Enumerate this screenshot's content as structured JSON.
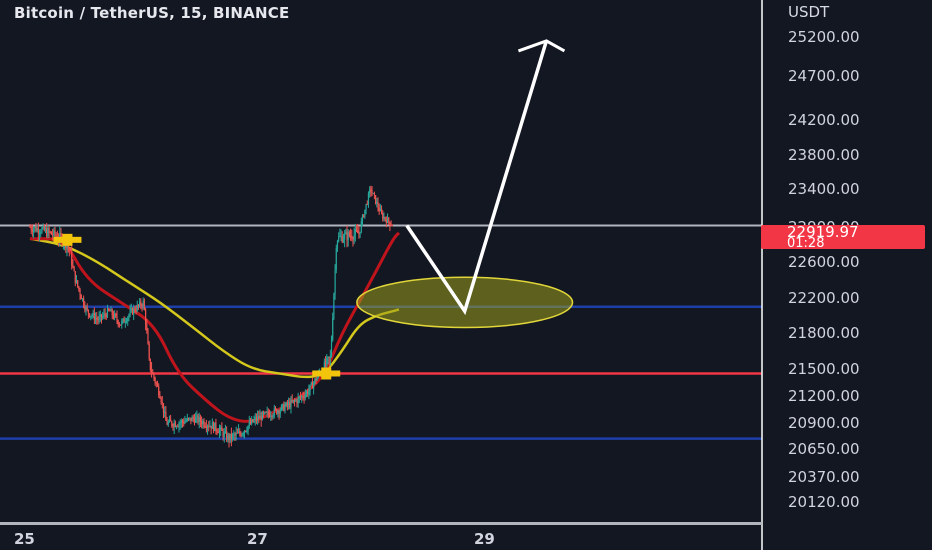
{
  "header": {
    "title": "Bitcoin / TetherUS, 15, BINANCE"
  },
  "axis": {
    "unit": "USDT"
  },
  "price_tag": {
    "value": "22919.97",
    "countdown": "01:28"
  },
  "colors": {
    "background": "#131722",
    "price_line": "#b2b5be",
    "support_blue": "#1e3fa8",
    "support_red": "#f23645",
    "ema_fast": "#c0141c",
    "ema_slow": "#d4c81c",
    "candle_up": "#26a69a",
    "candle_down": "#ef5350",
    "zone": "#9c9c1c",
    "arrow": "#ffffff"
  },
  "chart_data": {
    "type": "candlestick",
    "title": "Bitcoin / TetherUS, 15, BINANCE",
    "y_axis_ticks": [
      "25200.00",
      "24700.00",
      "24200.00",
      "23800.00",
      "23400.00",
      "22900.00",
      "22600.00",
      "22200.00",
      "21800.00",
      "21500.00",
      "21200.00",
      "20900.00",
      "20650.00",
      "20370.00",
      "20120.00"
    ],
    "x_axis_ticks": [
      "25",
      "27",
      "29"
    ],
    "last_price": 22919.97,
    "horizontal_levels": [
      {
        "price": 22920,
        "color": "gray"
      },
      {
        "price": 22100,
        "color": "blue"
      },
      {
        "price": 21450,
        "color": "red"
      },
      {
        "price": 20750,
        "color": "blue"
      }
    ],
    "close_path": [
      [
        0.0,
        22900
      ],
      [
        0.1,
        22880
      ],
      [
        0.3,
        22790
      ],
      [
        0.35,
        22700
      ],
      [
        0.4,
        22400
      ],
      [
        0.5,
        22050
      ],
      [
        0.6,
        21950
      ],
      [
        0.7,
        22050
      ],
      [
        0.8,
        21900
      ],
      [
        0.9,
        22050
      ],
      [
        1.0,
        22150
      ],
      [
        1.05,
        21550
      ],
      [
        1.15,
        21200
      ],
      [
        1.2,
        20900
      ],
      [
        1.3,
        20900
      ],
      [
        1.45,
        20950
      ],
      [
        1.55,
        20900
      ],
      [
        1.65,
        20850
      ],
      [
        1.75,
        20750
      ],
      [
        1.85,
        20800
      ],
      [
        2.0,
        20950
      ],
      [
        2.2,
        21050
      ],
      [
        2.35,
        21150
      ],
      [
        2.45,
        21250
      ],
      [
        2.55,
        21450
      ],
      [
        2.65,
        21600
      ],
      [
        2.7,
        22800
      ],
      [
        2.9,
        22850
      ],
      [
        3.0,
        23400
      ],
      [
        3.1,
        23050
      ],
      [
        3.2,
        22920
      ]
    ],
    "ema_fast": [
      [
        0.0,
        22800
      ],
      [
        0.3,
        22800
      ],
      [
        0.5,
        22400
      ],
      [
        0.8,
        22150
      ],
      [
        1.1,
        21900
      ],
      [
        1.3,
        21450
      ],
      [
        1.55,
        21150
      ],
      [
        1.75,
        20950
      ],
      [
        1.95,
        20900
      ],
      [
        2.2,
        21050
      ],
      [
        2.45,
        21250
      ],
      [
        2.6,
        21450
      ],
      [
        2.75,
        21800
      ],
      [
        2.9,
        22150
      ],
      [
        3.05,
        22500
      ],
      [
        3.2,
        22800
      ],
      [
        3.25,
        22850
      ]
    ],
    "ema_slow": [
      [
        0.0,
        22800
      ],
      [
        0.3,
        22750
      ],
      [
        0.6,
        22600
      ],
      [
        0.9,
        22350
      ],
      [
        1.15,
        22150
      ],
      [
        1.45,
        21850
      ],
      [
        1.7,
        21650
      ],
      [
        1.95,
        21500
      ],
      [
        2.2,
        21450
      ],
      [
        2.45,
        21400
      ],
      [
        2.6,
        21450
      ],
      [
        2.75,
        21650
      ],
      [
        2.9,
        21900
      ],
      [
        3.05,
        22000
      ],
      [
        3.2,
        22050
      ],
      [
        3.25,
        22070
      ]
    ],
    "markers": [
      {
        "x": 0.33,
        "price": 22790
      },
      {
        "x": 2.61,
        "price": 21450
      }
    ],
    "projection": [
      [
        3.32,
        22920
      ],
      [
        3.83,
        22050
      ],
      [
        4.55,
        25150
      ]
    ],
    "zone": {
      "x_center": 3.83,
      "price_center": 22150,
      "x_half_width": 0.95,
      "price_half_height": 280
    }
  }
}
